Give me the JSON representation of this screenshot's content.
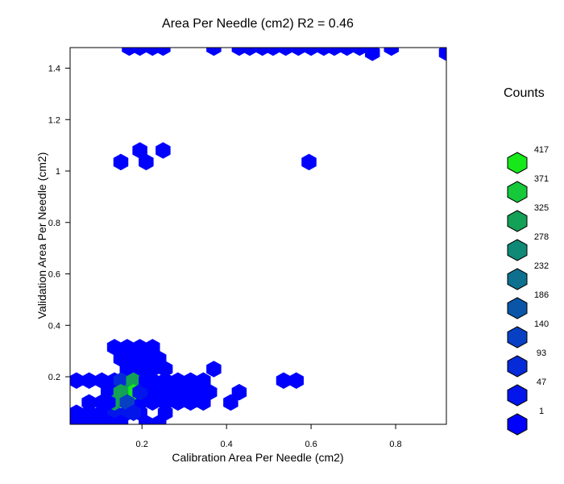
{
  "chart_data": {
    "type": "heatmap",
    "subtype": "hexbin",
    "title": "Area Per Needle (cm2)  R2  =  0.46",
    "xlabel": "Calibration  Area Per Needle (cm2)",
    "ylabel": "Validation  Area Per Needle (cm2)",
    "xlim": [
      0.03,
      0.92
    ],
    "ylim": [
      0.015,
      1.48
    ],
    "x_ticks": [
      0.2,
      0.4,
      0.6,
      0.8
    ],
    "x_tick_labels": [
      "0.2",
      "0.4",
      "0.6",
      "0.8"
    ],
    "y_ticks": [
      0.2,
      0.4,
      0.6,
      0.8,
      1.0,
      1.2,
      1.4
    ],
    "y_tick_labels": [
      "0.2",
      "0.4",
      "0.6",
      "0.8",
      "1",
      "1.2",
      "1.4"
    ],
    "grid": false,
    "legend": {
      "title": "Counts",
      "placement": "right",
      "breaks": [
        "417",
        "371",
        "325",
        "278",
        "232",
        "186",
        "140",
        "93",
        "47",
        "1"
      ],
      "colors": [
        "#16e81a",
        "#15c93b",
        "#13a057",
        "#108a76",
        "#0e6f8e",
        "#0b55a9",
        "#0840c4",
        "#052ad8",
        "#0215eb",
        "#0000ff"
      ]
    },
    "colors": {
      "count_1_47": "#0000ff",
      "count_47_93": "#0215eb",
      "count_93_140": "#052ad8",
      "count_140_186": "#0840c4",
      "count_278_325": "#108a76",
      "count_325_371": "#13a057",
      "count_371_417": "#15c93b",
      "count_max": "#16e81a"
    },
    "bins": [
      {
        "x": 0.17,
        "y": 1.48,
        "count": 1
      },
      {
        "x": 0.195,
        "y": 1.48,
        "count": 1
      },
      {
        "x": 0.225,
        "y": 1.48,
        "count": 1
      },
      {
        "x": 0.25,
        "y": 1.48,
        "count": 1
      },
      {
        "x": 0.37,
        "y": 1.48,
        "count": 1
      },
      {
        "x": 0.43,
        "y": 1.48,
        "count": 1
      },
      {
        "x": 0.455,
        "y": 1.48,
        "count": 1
      },
      {
        "x": 0.485,
        "y": 1.48,
        "count": 1
      },
      {
        "x": 0.51,
        "y": 1.48,
        "count": 1
      },
      {
        "x": 0.54,
        "y": 1.48,
        "count": 1
      },
      {
        "x": 0.57,
        "y": 1.48,
        "count": 1
      },
      {
        "x": 0.6,
        "y": 1.48,
        "count": 1
      },
      {
        "x": 0.63,
        "y": 1.48,
        "count": 1
      },
      {
        "x": 0.655,
        "y": 1.48,
        "count": 1
      },
      {
        "x": 0.685,
        "y": 1.48,
        "count": 1
      },
      {
        "x": 0.715,
        "y": 1.48,
        "count": 1
      },
      {
        "x": 0.79,
        "y": 1.48,
        "count": 1
      },
      {
        "x": 0.745,
        "y": 1.46,
        "count": 1
      },
      {
        "x": 0.92,
        "y": 1.46,
        "count": 1
      },
      {
        "x": 0.15,
        "y": 1.035,
        "count": 1
      },
      {
        "x": 0.195,
        "y": 1.08,
        "count": 1
      },
      {
        "x": 0.21,
        "y": 1.035,
        "count": 1
      },
      {
        "x": 0.25,
        "y": 1.08,
        "count": 1
      },
      {
        "x": 0.595,
        "y": 1.035,
        "count": 1
      },
      {
        "x": 0.535,
        "y": 0.185,
        "count": 1
      },
      {
        "x": 0.565,
        "y": 0.185,
        "count": 1
      },
      {
        "x": 0.37,
        "y": 0.23,
        "count": 1
      },
      {
        "x": 0.43,
        "y": 0.14,
        "count": 1
      },
      {
        "x": 0.41,
        "y": 0.1,
        "count": 1
      },
      {
        "x": 0.135,
        "y": 0.315,
        "count": 1
      },
      {
        "x": 0.165,
        "y": 0.315,
        "count": 1
      },
      {
        "x": 0.195,
        "y": 0.315,
        "count": 1
      },
      {
        "x": 0.225,
        "y": 0.315,
        "count": 1
      },
      {
        "x": 0.15,
        "y": 0.27,
        "count": 1
      },
      {
        "x": 0.18,
        "y": 0.27,
        "count": 1
      },
      {
        "x": 0.21,
        "y": 0.27,
        "count": 1
      },
      {
        "x": 0.24,
        "y": 0.27,
        "count": 1
      },
      {
        "x": 0.045,
        "y": 0.185,
        "count": 1
      },
      {
        "x": 0.075,
        "y": 0.185,
        "count": 1
      },
      {
        "x": 0.105,
        "y": 0.185,
        "count": 1
      },
      {
        "x": 0.135,
        "y": 0.185,
        "count": 1
      },
      {
        "x": 0.195,
        "y": 0.185,
        "count": 40
      },
      {
        "x": 0.225,
        "y": 0.185,
        "count": 1
      },
      {
        "x": 0.255,
        "y": 0.185,
        "count": 1
      },
      {
        "x": 0.285,
        "y": 0.185,
        "count": 1
      },
      {
        "x": 0.315,
        "y": 0.185,
        "count": 1
      },
      {
        "x": 0.345,
        "y": 0.185,
        "count": 1
      },
      {
        "x": 0.165,
        "y": 0.23,
        "count": 1
      },
      {
        "x": 0.195,
        "y": 0.23,
        "count": 1
      },
      {
        "x": 0.225,
        "y": 0.23,
        "count": 1
      },
      {
        "x": 0.255,
        "y": 0.23,
        "count": 1
      },
      {
        "x": 0.12,
        "y": 0.14,
        "count": 1
      },
      {
        "x": 0.21,
        "y": 0.14,
        "count": 1
      },
      {
        "x": 0.24,
        "y": 0.14,
        "count": 1
      },
      {
        "x": 0.27,
        "y": 0.14,
        "count": 1
      },
      {
        "x": 0.3,
        "y": 0.14,
        "count": 1
      },
      {
        "x": 0.33,
        "y": 0.14,
        "count": 1
      },
      {
        "x": 0.36,
        "y": 0.14,
        "count": 1
      },
      {
        "x": 0.075,
        "y": 0.1,
        "count": 1
      },
      {
        "x": 0.105,
        "y": 0.1,
        "count": 1
      },
      {
        "x": 0.195,
        "y": 0.1,
        "count": 40
      },
      {
        "x": 0.225,
        "y": 0.1,
        "count": 1
      },
      {
        "x": 0.255,
        "y": 0.1,
        "count": 1
      },
      {
        "x": 0.285,
        "y": 0.1,
        "count": 1
      },
      {
        "x": 0.315,
        "y": 0.1,
        "count": 1
      },
      {
        "x": 0.345,
        "y": 0.1,
        "count": 1
      },
      {
        "x": 0.045,
        "y": 0.06,
        "count": 1
      },
      {
        "x": 0.075,
        "y": 0.06,
        "count": 1
      },
      {
        "x": 0.105,
        "y": 0.06,
        "count": 1
      },
      {
        "x": 0.135,
        "y": 0.06,
        "count": 60
      },
      {
        "x": 0.165,
        "y": 0.06,
        "count": 60
      },
      {
        "x": 0.195,
        "y": 0.06,
        "count": 1
      },
      {
        "x": 0.255,
        "y": 0.06,
        "count": 1
      },
      {
        "x": 0.03,
        "y": 0.02,
        "count": 1
      },
      {
        "x": 0.06,
        "y": 0.02,
        "count": 1
      },
      {
        "x": 0.09,
        "y": 0.02,
        "count": 1
      },
      {
        "x": 0.12,
        "y": 0.02,
        "count": 1
      },
      {
        "x": 0.15,
        "y": 0.02,
        "count": 1
      },
      {
        "x": 0.21,
        "y": 0.02,
        "count": 1
      },
      {
        "x": 0.24,
        "y": 0.02,
        "count": 1
      },
      {
        "x": 0.15,
        "y": 0.185,
        "count": 110
      },
      {
        "x": 0.165,
        "y": 0.14,
        "count": 290
      },
      {
        "x": 0.18,
        "y": 0.185,
        "count": 330
      },
      {
        "x": 0.18,
        "y": 0.14,
        "count": 417
      },
      {
        "x": 0.15,
        "y": 0.14,
        "count": 340
      },
      {
        "x": 0.135,
        "y": 0.1,
        "count": 330
      },
      {
        "x": 0.165,
        "y": 0.1,
        "count": 150
      },
      {
        "x": 0.18,
        "y": 0.06,
        "count": 60
      },
      {
        "x": 0.195,
        "y": 0.14,
        "count": 60
      },
      {
        "x": 0.21,
        "y": 0.185,
        "count": 40
      },
      {
        "x": 0.12,
        "y": 0.1,
        "count": 1
      }
    ]
  }
}
